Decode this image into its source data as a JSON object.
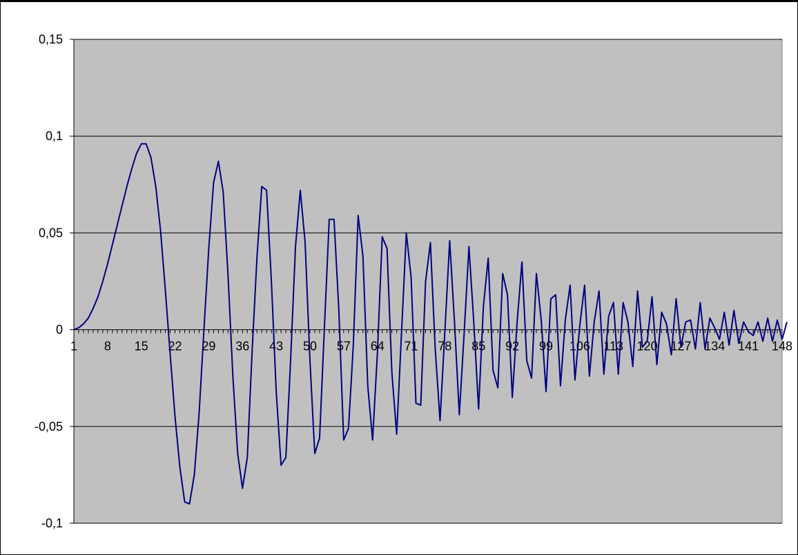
{
  "chart_data": {
    "type": "line",
    "title": "",
    "xlabel": "",
    "ylabel": "",
    "ylim": [
      -0.1,
      0.15
    ],
    "xlim": [
      1,
      148
    ],
    "yticks": [
      "0,15",
      "0,1",
      "0,05",
      "0",
      "-0,05",
      "-0,1"
    ],
    "ytick_values": [
      0.15,
      0.1,
      0.05,
      0,
      -0.05,
      -0.1
    ],
    "xticks": [
      "1",
      "8",
      "15",
      "22",
      "29",
      "36",
      "43",
      "50",
      "57",
      "64",
      "71",
      "78",
      "85",
      "92",
      "99",
      "106",
      "113",
      "120",
      "127",
      "134",
      "141",
      "148"
    ],
    "grid": "horizontal",
    "colors": {
      "plot_bg": "#c0c0c0",
      "series": "#000080",
      "gridline": "#000000"
    },
    "series": [
      {
        "values": [
          0.0,
          0.001,
          0.003,
          0.006,
          0.011,
          0.017,
          0.025,
          0.034,
          0.044,
          0.054,
          0.064,
          0.074,
          0.083,
          0.091,
          0.096,
          0.096,
          0.089,
          0.074,
          0.051,
          0.02,
          -0.013,
          -0.045,
          -0.071,
          -0.089,
          -0.09,
          -0.075,
          -0.043,
          0.0,
          0.042,
          0.076,
          0.087,
          0.071,
          0.028,
          -0.024,
          -0.064,
          -0.082,
          -0.066,
          -0.011,
          0.037,
          0.074,
          0.072,
          0.025,
          -0.032,
          -0.07,
          -0.066,
          -0.015,
          0.043,
          0.072,
          0.045,
          -0.016,
          -0.064,
          -0.056,
          0.001,
          0.057,
          0.057,
          0.01,
          -0.057,
          -0.051,
          -0.008,
          0.059,
          0.038,
          -0.029,
          -0.057,
          -0.012,
          0.048,
          0.042,
          -0.022,
          -0.054,
          -0.002,
          0.05,
          0.027,
          -0.038,
          -0.039,
          0.025,
          0.045,
          -0.01,
          -0.047,
          -0.001,
          0.046,
          0.004,
          -0.044,
          -0.002,
          0.043,
          0.004,
          -0.041,
          0.012,
          0.037,
          -0.021,
          -0.03,
          0.029,
          0.018,
          -0.035,
          0.004,
          0.035,
          -0.016,
          -0.025,
          0.029,
          0.005,
          -0.032,
          0.016,
          0.018,
          -0.029,
          0.005,
          0.023,
          -0.026,
          0.002,
          0.023,
          -0.024,
          0.004,
          0.02,
          -0.023,
          0.007,
          0.014,
          -0.023,
          0.014,
          0.004,
          -0.019,
          0.02,
          -0.009,
          -0.006,
          0.017,
          -0.018,
          0.009,
          0.003,
          -0.013,
          0.016,
          -0.009,
          0.004,
          0.005,
          -0.01,
          0.014,
          -0.01,
          0.006,
          0.001,
          -0.005,
          0.009,
          -0.008,
          0.01,
          -0.007,
          0.004,
          -0.001,
          -0.003,
          0.004,
          -0.006,
          0.006,
          -0.006,
          0.005,
          -0.005,
          0.004
        ]
      }
    ]
  }
}
